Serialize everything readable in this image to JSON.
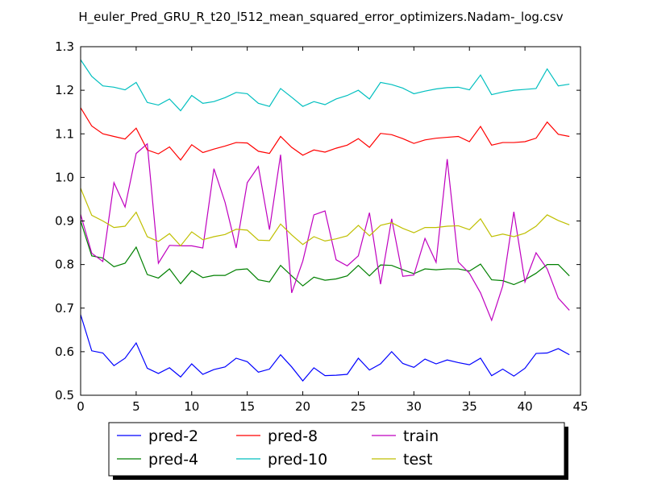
{
  "chart_data": {
    "type": "line",
    "title": "H_euler_Pred_GRU_R_t20_l512_mean_squared_error_optimizers.Nadam-_log.csv",
    "xlabel": "",
    "ylabel": "",
    "xlim": [
      0,
      45
    ],
    "ylim": [
      0.5,
      1.3
    ],
    "x_ticks": [
      "0",
      "5",
      "10",
      "15",
      "20",
      "25",
      "30",
      "35",
      "40",
      "45"
    ],
    "y_ticks": [
      "0.5",
      "0.6",
      "0.7",
      "0.8",
      "0.9",
      "1.0",
      "1.1",
      "1.2",
      "1.3"
    ],
    "grid": false,
    "legend_position": "bottom-center",
    "x": [
      0,
      1,
      2,
      3,
      4,
      5,
      6,
      7,
      8,
      9,
      10,
      11,
      12,
      13,
      14,
      15,
      16,
      17,
      18,
      19,
      20,
      21,
      22,
      23,
      24,
      25,
      26,
      27,
      28,
      29,
      30,
      31,
      32,
      33,
      34,
      35,
      36,
      37,
      38,
      39,
      40,
      41,
      42,
      43,
      44
    ],
    "series": [
      {
        "name": "pred-2",
        "color": "#0000ff",
        "values": [
          0.685,
          0.602,
          0.597,
          0.568,
          0.585,
          0.62,
          0.562,
          0.55,
          0.563,
          0.542,
          0.572,
          0.548,
          0.559,
          0.565,
          0.585,
          0.577,
          0.553,
          0.56,
          0.593,
          0.565,
          0.533,
          0.563,
          0.545,
          0.546,
          0.548,
          0.585,
          0.558,
          0.572,
          0.6,
          0.573,
          0.564,
          0.583,
          0.572,
          0.581,
          0.575,
          0.57,
          0.585,
          0.545,
          0.56,
          0.544,
          0.562,
          0.596,
          0.597,
          0.607,
          0.593
        ]
      },
      {
        "name": "pred-4",
        "color": "#008000",
        "values": [
          0.9,
          0.82,
          0.815,
          0.795,
          0.803,
          0.84,
          0.777,
          0.769,
          0.79,
          0.756,
          0.786,
          0.77,
          0.775,
          0.775,
          0.788,
          0.79,
          0.765,
          0.76,
          0.798,
          0.774,
          0.751,
          0.771,
          0.764,
          0.767,
          0.774,
          0.798,
          0.774,
          0.799,
          0.798,
          0.788,
          0.779,
          0.79,
          0.788,
          0.79,
          0.79,
          0.785,
          0.801,
          0.765,
          0.763,
          0.754,
          0.765,
          0.78,
          0.8,
          0.8,
          0.774
        ]
      },
      {
        "name": "pred-8",
        "color": "#ff0000",
        "values": [
          1.16,
          1.118,
          1.1,
          1.094,
          1.088,
          1.113,
          1.063,
          1.054,
          1.07,
          1.04,
          1.075,
          1.057,
          1.065,
          1.072,
          1.08,
          1.079,
          1.06,
          1.055,
          1.094,
          1.069,
          1.051,
          1.063,
          1.058,
          1.067,
          1.074,
          1.089,
          1.069,
          1.101,
          1.098,
          1.089,
          1.078,
          1.086,
          1.09,
          1.092,
          1.094,
          1.082,
          1.117,
          1.074,
          1.08,
          1.08,
          1.082,
          1.09,
          1.127,
          1.099,
          1.094
        ]
      },
      {
        "name": "pred-10",
        "color": "#00bfbf",
        "values": [
          1.27,
          1.232,
          1.21,
          1.207,
          1.201,
          1.218,
          1.172,
          1.166,
          1.18,
          1.153,
          1.188,
          1.17,
          1.174,
          1.183,
          1.195,
          1.192,
          1.17,
          1.163,
          1.204,
          1.184,
          1.163,
          1.174,
          1.167,
          1.18,
          1.188,
          1.2,
          1.18,
          1.218,
          1.213,
          1.205,
          1.192,
          1.198,
          1.203,
          1.206,
          1.207,
          1.201,
          1.235,
          1.19,
          1.196,
          1.2,
          1.202,
          1.204,
          1.249,
          1.21,
          1.214
        ]
      },
      {
        "name": "train",
        "color": "#bf00bf",
        "values": [
          0.915,
          0.826,
          0.807,
          0.988,
          0.932,
          1.055,
          1.077,
          0.803,
          0.844,
          0.843,
          0.843,
          0.838,
          1.02,
          0.943,
          0.838,
          0.988,
          1.025,
          0.88,
          1.052,
          0.735,
          0.808,
          0.914,
          0.923,
          0.811,
          0.797,
          0.82,
          0.919,
          0.755,
          0.905,
          0.773,
          0.776,
          0.86,
          0.805,
          1.042,
          0.806,
          0.78,
          0.735,
          0.672,
          0.751,
          0.921,
          0.76,
          0.827,
          0.79,
          0.723,
          0.695
        ]
      },
      {
        "name": "test",
        "color": "#bfbf00",
        "values": [
          0.975,
          0.913,
          0.9,
          0.885,
          0.888,
          0.92,
          0.864,
          0.853,
          0.871,
          0.843,
          0.875,
          0.857,
          0.864,
          0.869,
          0.881,
          0.879,
          0.856,
          0.855,
          0.893,
          0.868,
          0.846,
          0.864,
          0.854,
          0.859,
          0.866,
          0.89,
          0.866,
          0.89,
          0.896,
          0.883,
          0.873,
          0.885,
          0.885,
          0.888,
          0.889,
          0.88,
          0.905,
          0.864,
          0.87,
          0.864,
          0.872,
          0.888,
          0.914,
          0.901,
          0.891
        ]
      }
    ]
  }
}
